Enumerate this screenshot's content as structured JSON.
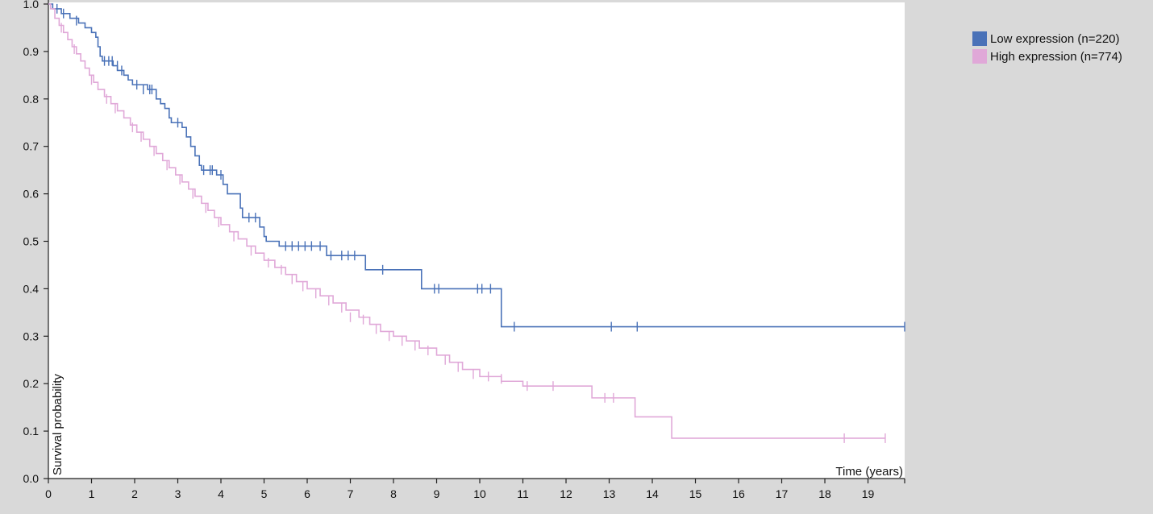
{
  "chart_data": {
    "type": "line",
    "title": "",
    "xlabel": "Time (years)",
    "ylabel": "Survival probability",
    "xlim": [
      0,
      19.85
    ],
    "ylim": [
      0,
      1.0
    ],
    "x_ticks": [
      0,
      1,
      2,
      3,
      4,
      5,
      6,
      7,
      8,
      9,
      10,
      11,
      12,
      13,
      14,
      15,
      16,
      17,
      18,
      19
    ],
    "y_ticks": [
      "0.0",
      "0.1",
      "0.2",
      "0.3",
      "0.4",
      "0.5",
      "0.6",
      "0.7",
      "0.8",
      "0.9",
      "1.0"
    ],
    "grid": false,
    "legend_position": "top-right",
    "series": [
      {
        "name": "Low expression (n=220)",
        "color": "#4a72b8",
        "steps": [
          [
            0,
            1.0
          ],
          [
            0.1,
            0.99
          ],
          [
            0.3,
            0.98
          ],
          [
            0.5,
            0.97
          ],
          [
            0.7,
            0.96
          ],
          [
            0.85,
            0.95
          ],
          [
            1.0,
            0.94
          ],
          [
            1.1,
            0.93
          ],
          [
            1.15,
            0.91
          ],
          [
            1.2,
            0.89
          ],
          [
            1.25,
            0.88
          ],
          [
            1.5,
            0.87
          ],
          [
            1.6,
            0.86
          ],
          [
            1.75,
            0.85
          ],
          [
            1.85,
            0.84
          ],
          [
            1.95,
            0.83
          ],
          [
            2.3,
            0.82
          ],
          [
            2.5,
            0.8
          ],
          [
            2.6,
            0.79
          ],
          [
            2.7,
            0.78
          ],
          [
            2.8,
            0.76
          ],
          [
            2.85,
            0.75
          ],
          [
            3.1,
            0.74
          ],
          [
            3.2,
            0.72
          ],
          [
            3.3,
            0.7
          ],
          [
            3.4,
            0.68
          ],
          [
            3.5,
            0.66
          ],
          [
            3.55,
            0.65
          ],
          [
            3.9,
            0.64
          ],
          [
            4.05,
            0.62
          ],
          [
            4.15,
            0.6
          ],
          [
            4.45,
            0.57
          ],
          [
            4.5,
            0.55
          ],
          [
            4.9,
            0.53
          ],
          [
            5.0,
            0.51
          ],
          [
            5.05,
            0.5
          ],
          [
            5.35,
            0.49
          ],
          [
            6.45,
            0.47
          ],
          [
            7.35,
            0.44
          ],
          [
            8.65,
            0.4
          ],
          [
            10.5,
            0.32
          ],
          [
            19.85,
            0.32
          ]
        ],
        "censors": [
          [
            0.2,
            0.99
          ],
          [
            0.35,
            0.98
          ],
          [
            0.65,
            0.965
          ],
          [
            1.3,
            0.88
          ],
          [
            1.4,
            0.88
          ],
          [
            1.48,
            0.88
          ],
          [
            1.6,
            0.87
          ],
          [
            1.7,
            0.86
          ],
          [
            2.05,
            0.83
          ],
          [
            2.2,
            0.82
          ],
          [
            2.35,
            0.82
          ],
          [
            2.4,
            0.82
          ],
          [
            3.0,
            0.75
          ],
          [
            3.6,
            0.65
          ],
          [
            3.75,
            0.65
          ],
          [
            3.8,
            0.65
          ],
          [
            4.0,
            0.64
          ],
          [
            4.65,
            0.55
          ],
          [
            4.8,
            0.55
          ],
          [
            5.5,
            0.49
          ],
          [
            5.65,
            0.49
          ],
          [
            5.8,
            0.49
          ],
          [
            5.95,
            0.49
          ],
          [
            6.1,
            0.49
          ],
          [
            6.3,
            0.49
          ],
          [
            6.55,
            0.47
          ],
          [
            6.8,
            0.47
          ],
          [
            6.95,
            0.47
          ],
          [
            7.1,
            0.47
          ],
          [
            7.75,
            0.44
          ],
          [
            8.95,
            0.4
          ],
          [
            9.05,
            0.4
          ],
          [
            9.95,
            0.4
          ],
          [
            10.05,
            0.4
          ],
          [
            10.25,
            0.4
          ],
          [
            10.8,
            0.32
          ],
          [
            13.05,
            0.32
          ],
          [
            13.65,
            0.32
          ],
          [
            19.85,
            0.32
          ]
        ]
      },
      {
        "name": "High expression (n=774)",
        "color": "#e0a8d8",
        "steps": [
          [
            0,
            1.0
          ],
          [
            0.05,
            0.99
          ],
          [
            0.15,
            0.97
          ],
          [
            0.25,
            0.955
          ],
          [
            0.35,
            0.94
          ],
          [
            0.45,
            0.925
          ],
          [
            0.55,
            0.91
          ],
          [
            0.65,
            0.895
          ],
          [
            0.75,
            0.88
          ],
          [
            0.85,
            0.865
          ],
          [
            0.95,
            0.85
          ],
          [
            1.05,
            0.835
          ],
          [
            1.15,
            0.82
          ],
          [
            1.3,
            0.805
          ],
          [
            1.45,
            0.79
          ],
          [
            1.6,
            0.775
          ],
          [
            1.75,
            0.76
          ],
          [
            1.9,
            0.745
          ],
          [
            2.05,
            0.73
          ],
          [
            2.2,
            0.715
          ],
          [
            2.35,
            0.7
          ],
          [
            2.5,
            0.685
          ],
          [
            2.65,
            0.67
          ],
          [
            2.8,
            0.655
          ],
          [
            2.95,
            0.64
          ],
          [
            3.1,
            0.625
          ],
          [
            3.25,
            0.61
          ],
          [
            3.4,
            0.595
          ],
          [
            3.55,
            0.58
          ],
          [
            3.7,
            0.565
          ],
          [
            3.85,
            0.55
          ],
          [
            4.0,
            0.535
          ],
          [
            4.2,
            0.52
          ],
          [
            4.4,
            0.505
          ],
          [
            4.6,
            0.49
          ],
          [
            4.8,
            0.475
          ],
          [
            5.0,
            0.46
          ],
          [
            5.25,
            0.445
          ],
          [
            5.5,
            0.43
          ],
          [
            5.75,
            0.415
          ],
          [
            6.0,
            0.4
          ],
          [
            6.3,
            0.385
          ],
          [
            6.6,
            0.37
          ],
          [
            6.9,
            0.355
          ],
          [
            7.2,
            0.34
          ],
          [
            7.45,
            0.325
          ],
          [
            7.7,
            0.31
          ],
          [
            8.0,
            0.3
          ],
          [
            8.3,
            0.29
          ],
          [
            8.6,
            0.275
          ],
          [
            9.0,
            0.26
          ],
          [
            9.3,
            0.245
          ],
          [
            9.6,
            0.23
          ],
          [
            10.0,
            0.215
          ],
          [
            10.5,
            0.205
          ],
          [
            11.0,
            0.195
          ],
          [
            12.6,
            0.17
          ],
          [
            13.6,
            0.13
          ],
          [
            14.45,
            0.085
          ],
          [
            19.4,
            0.085
          ]
        ],
        "censors": [
          [
            0.3,
            0.95
          ],
          [
            0.6,
            0.905
          ],
          [
            1.0,
            0.84
          ],
          [
            1.35,
            0.8
          ],
          [
            1.55,
            0.78
          ],
          [
            1.95,
            0.74
          ],
          [
            2.15,
            0.72
          ],
          [
            2.45,
            0.69
          ],
          [
            2.75,
            0.66
          ],
          [
            3.05,
            0.63
          ],
          [
            3.35,
            0.6
          ],
          [
            3.65,
            0.57
          ],
          [
            3.95,
            0.54
          ],
          [
            4.3,
            0.51
          ],
          [
            4.7,
            0.48
          ],
          [
            5.1,
            0.455
          ],
          [
            5.4,
            0.44
          ],
          [
            5.65,
            0.42
          ],
          [
            5.9,
            0.405
          ],
          [
            6.2,
            0.39
          ],
          [
            6.5,
            0.375
          ],
          [
            6.8,
            0.36
          ],
          [
            7.0,
            0.34
          ],
          [
            7.3,
            0.335
          ],
          [
            7.6,
            0.315
          ],
          [
            7.9,
            0.3
          ],
          [
            8.2,
            0.29
          ],
          [
            8.5,
            0.28
          ],
          [
            8.8,
            0.27
          ],
          [
            9.2,
            0.25
          ],
          [
            9.5,
            0.235
          ],
          [
            9.85,
            0.22
          ],
          [
            10.2,
            0.215
          ],
          [
            10.5,
            0.21
          ],
          [
            11.1,
            0.195
          ],
          [
            11.7,
            0.195
          ],
          [
            12.9,
            0.17
          ],
          [
            13.1,
            0.17
          ],
          [
            18.45,
            0.085
          ],
          [
            19.4,
            0.085
          ]
        ]
      }
    ]
  }
}
